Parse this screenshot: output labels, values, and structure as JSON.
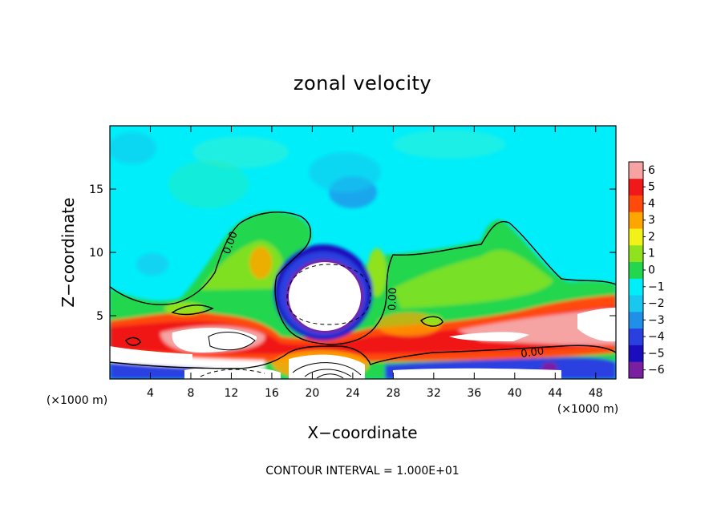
{
  "chart_data": {
    "type": "heatmap",
    "title": "zonal velocity",
    "xlabel": "X−coordinate",
    "ylabel": "Z−coordinate",
    "x_unit_note": "(×1000 m)",
    "x_unit_note_right": "(×1000 m)",
    "xlim": [
      0,
      50
    ],
    "ylim": [
      0,
      20
    ],
    "x_ticks": [
      4,
      8,
      12,
      16,
      20,
      24,
      28,
      32,
      36,
      40,
      44,
      48
    ],
    "y_ticks": [
      5,
      10,
      15
    ],
    "colorbar": {
      "min": -6,
      "max": 6,
      "ticks": [
        -6,
        -5,
        -4,
        -3,
        -2,
        -1,
        0,
        1,
        2,
        3,
        4,
        5,
        6
      ],
      "tick_labels": [
        "−6",
        "−5",
        "−4",
        "−3",
        "−2",
        "−1",
        "0",
        "1",
        "2",
        "3",
        "4",
        "5",
        "6"
      ],
      "colors": [
        "#7b1fa2",
        "#1a0dbe",
        "#2a3fe0",
        "#1f8fe8",
        "#19c8ef",
        "#00eefa",
        "#22d64e",
        "#8fe21d",
        "#f2f218",
        "#ffa500",
        "#ff4a0a",
        "#f01818",
        "#f5a3a3"
      ]
    },
    "contour_interval_text": "CONTOUR INTERVAL = 1.000E+01",
    "contour_labels": [
      "0.00",
      "0.00",
      "0.00"
    ]
  }
}
